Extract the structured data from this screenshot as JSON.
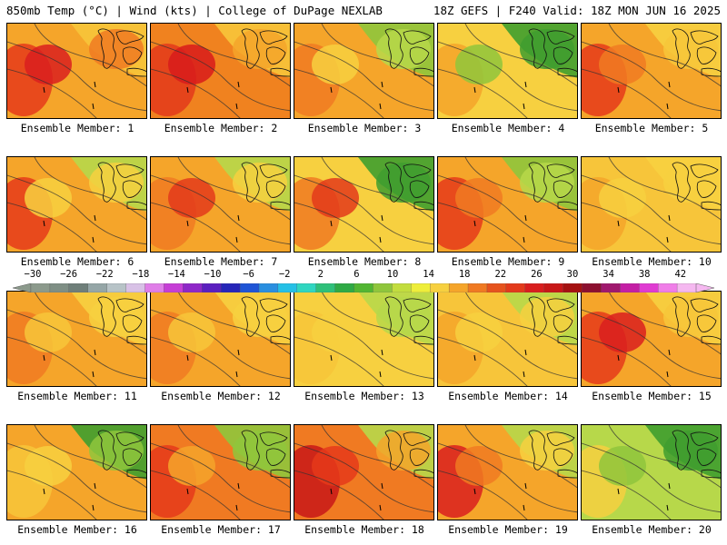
{
  "header": {
    "left": "850mb Temp (°C) | Wind (kts) | College of DuPage NEXLAB",
    "right": "18Z GEFS | F240 Valid: 18Z MON JUN 16 2025"
  },
  "panels": [
    {
      "caption": "Ensemble Member: 1",
      "base": "#f5a52a",
      "blobs": [
        "#e53a1a",
        "#d91e1e",
        "#f07a22"
      ],
      "north": "#f7c53a"
    },
    {
      "caption": "Ensemble Member: 2",
      "base": "#f0821f",
      "blobs": [
        "#e33a1b",
        "#d81b1b",
        "#f5a52a"
      ],
      "north": "#f7c53a"
    },
    {
      "caption": "Ensemble Member: 3",
      "base": "#f5a52a",
      "blobs": [
        "#f07a22",
        "#f7d040",
        "#b7d84a"
      ],
      "north": "#8fc63c"
    },
    {
      "caption": "Ensemble Member: 4",
      "base": "#f7d040",
      "blobs": [
        "#f5a52a",
        "#8fc63c",
        "#3f9e2f"
      ],
      "north": "#3f9e2f"
    },
    {
      "caption": "Ensemble Member: 5",
      "base": "#f5a52a",
      "blobs": [
        "#e53a1a",
        "#f07a22",
        "#f7c53a"
      ],
      "north": "#f7d040"
    },
    {
      "caption": "Ensemble Member: 6",
      "base": "#f5a52a",
      "blobs": [
        "#e53a1a",
        "#f7d040",
        "#f7d040"
      ],
      "north": "#b7d84a"
    },
    {
      "caption": "Ensemble Member: 7",
      "base": "#f5a52a",
      "blobs": [
        "#f07a22",
        "#e33a1b",
        "#f7d040"
      ],
      "north": "#b7d84a"
    },
    {
      "caption": "Ensemble Member: 8",
      "base": "#f7d040",
      "blobs": [
        "#f07a22",
        "#e33a1b",
        "#3f9e2f"
      ],
      "north": "#3f9e2f"
    },
    {
      "caption": "Ensemble Member: 9",
      "base": "#f5a52a",
      "blobs": [
        "#e53a1a",
        "#f07a22",
        "#b7d84a"
      ],
      "north": "#8fc63c"
    },
    {
      "caption": "Ensemble Member: 10",
      "base": "#f7c53a",
      "blobs": [
        "#f5a52a",
        "#f7d040",
        "#f7d040"
      ],
      "north": "#f7d040"
    },
    {
      "caption": "Ensemble Member: 11",
      "base": "#f5a52a",
      "blobs": [
        "#f07a22",
        "#f7c53a",
        "#f7d040"
      ],
      "north": "#f7d040"
    },
    {
      "caption": "Ensemble Member: 12",
      "base": "#f5a52a",
      "blobs": [
        "#f07a22",
        "#f7c53a",
        "#f7d040"
      ],
      "north": "#f7d040"
    },
    {
      "caption": "Ensemble Member: 13",
      "base": "#f7d040",
      "blobs": [
        "#f7c53a",
        "#f7d040",
        "#b7d84a"
      ],
      "north": "#b7d84a"
    },
    {
      "caption": "Ensemble Member: 14",
      "base": "#f7c53a",
      "blobs": [
        "#f5a52a",
        "#f7d040",
        "#f7d040"
      ],
      "north": "#b7d84a"
    },
    {
      "caption": "Ensemble Member: 15",
      "base": "#f5a52a",
      "blobs": [
        "#e53a1a",
        "#d91e1e",
        "#f7c53a"
      ],
      "north": "#f7d040"
    },
    {
      "caption": "Ensemble Member: 16",
      "base": "#f5a52a",
      "blobs": [
        "#f7c53a",
        "#f7d040",
        "#8fc63c"
      ],
      "north": "#3f9e2f"
    },
    {
      "caption": "Ensemble Member: 17",
      "base": "#f07a22",
      "blobs": [
        "#e53a1a",
        "#f5a52a",
        "#8fc63c"
      ],
      "north": "#8fc63c"
    },
    {
      "caption": "Ensemble Member: 18",
      "base": "#f07a22",
      "blobs": [
        "#c81818",
        "#e53a1a",
        "#f5a52a"
      ],
      "north": "#b7d84a"
    },
    {
      "caption": "Ensemble Member: 19",
      "base": "#f5a52a",
      "blobs": [
        "#d91e1e",
        "#f07a22",
        "#f7d040"
      ],
      "north": "#b7d84a"
    },
    {
      "caption": "Ensemble Member: 20",
      "base": "#b7d84a",
      "blobs": [
        "#f7d040",
        "#8fc63c",
        "#3f9e2f"
      ],
      "north": "#3f9e2f"
    }
  ],
  "colorbar": {
    "ticks": [
      "−30",
      "−26",
      "−22",
      "−18",
      "−14",
      "−10",
      "−6",
      "−2",
      "2",
      "6",
      "10",
      "14",
      "18",
      "22",
      "26",
      "30",
      "34",
      "38",
      "42"
    ],
    "colors": [
      "#8c9a8c",
      "#7f8f85",
      "#6f7f7a",
      "#95a6a7",
      "#b7c3c7",
      "#d8c1e6",
      "#e07ee8",
      "#c63ed6",
      "#8f27c8",
      "#5b1fbf",
      "#2626b8",
      "#1f55d6",
      "#2a8fe0",
      "#25c0e6",
      "#30d6c0",
      "#2fc07a",
      "#2faa45",
      "#52b632",
      "#8fc63c",
      "#c2dd3e",
      "#eeee3a",
      "#f7d040",
      "#f5a52a",
      "#f07a22",
      "#e6531d",
      "#e33a1b",
      "#d91e1e",
      "#c81818",
      "#a51212",
      "#8c1030",
      "#a0186e",
      "#c41fa5",
      "#e03bd2",
      "#f07ee8",
      "#f5b8f0"
    ]
  }
}
